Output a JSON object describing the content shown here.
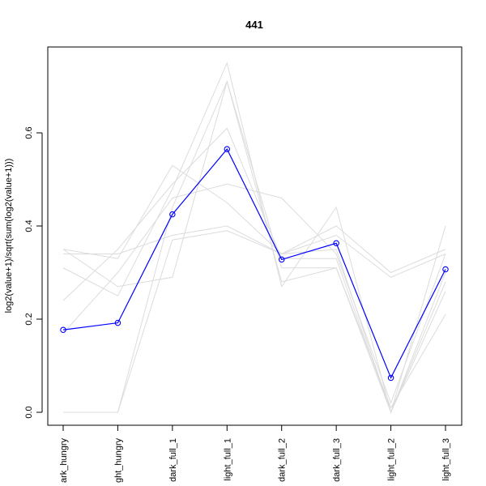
{
  "chart_data": {
    "type": "line",
    "title": "441",
    "xlabel": "",
    "ylabel": "log2(value+1)/sqrt(sum(log2(value+1)))",
    "categories": [
      "dark_hungry",
      "light_hungry",
      "dark_full_1",
      "light_full_1",
      "dark_full_2",
      "dark_full_3",
      "light_full_2",
      "light_full_3"
    ],
    "category_labels_shown": [
      "ark_hungry",
      "ght_hungry",
      "dark_full_1",
      "light_full_1",
      "dark_full_2",
      "dark_full_3",
      "light_full_2",
      "light_full_3"
    ],
    "yticks": [
      0.0,
      0.2,
      0.4,
      0.6
    ],
    "ytick_labels": [
      "0.0",
      "0.2",
      "0.4",
      "0.6"
    ],
    "ylim": [
      -0.03,
      0.78
    ],
    "grid": false,
    "highlight_color": "#0000ff",
    "background_color": "#dcdcdc",
    "highlight_series": {
      "values": [
        0.177,
        0.192,
        0.425,
        0.565,
        0.328,
        0.363,
        0.074,
        0.307
      ]
    },
    "background_series": [
      {
        "values": [
          0.35,
          0.33,
          0.53,
          0.45,
          0.34,
          0.38,
          0.29,
          0.34
        ]
      },
      {
        "values": [
          0.34,
          0.34,
          0.38,
          0.4,
          0.34,
          0.4,
          0.3,
          0.35
        ]
      },
      {
        "values": [
          0.31,
          0.25,
          0.48,
          0.75,
          0.27,
          0.44,
          0.0,
          0.4
        ]
      },
      {
        "values": [
          0.24,
          0.35,
          0.49,
          0.61,
          0.33,
          0.33,
          0.0,
          0.26
        ]
      },
      {
        "values": [
          0.35,
          0.27,
          0.29,
          0.71,
          0.28,
          0.31,
          0.0,
          0.28
        ]
      },
      {
        "values": [
          0.0,
          0.0,
          0.44,
          0.71,
          0.31,
          0.31,
          0.01,
          0.21
        ]
      },
      {
        "values": [
          0.0,
          0.0,
          0.37,
          0.39,
          0.34,
          0.35,
          0.0,
          0.3
        ]
      },
      {
        "values": [
          0.17,
          0.3,
          0.46,
          0.49,
          0.46,
          0.34,
          0.02,
          0.34
        ]
      }
    ]
  }
}
